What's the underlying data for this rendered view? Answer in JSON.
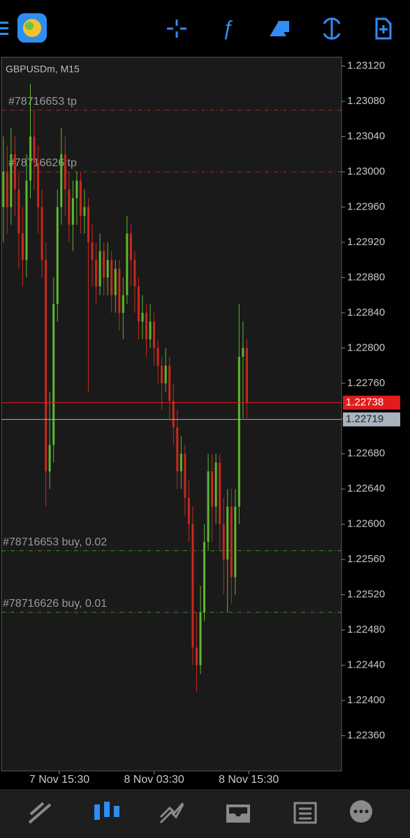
{
  "chart_data": {
    "type": "candlestick",
    "title": "GBPUSDm, M15",
    "up_color": "#5cb82e",
    "down_color": "#c8281e",
    "open": [
      1.2296,
      1.23,
      1.2296,
      1.2302,
      1.2298,
      1.2293,
      1.229,
      1.2299,
      1.2304,
      1.2301,
      1.2296,
      1.229,
      1.2266,
      1.2269,
      1.2285,
      1.2296,
      1.2302,
      1.2298,
      1.2294,
      1.2297,
      1.2299,
      1.2295,
      1.2296,
      1.2292,
      1.229,
      1.2287,
      1.2291,
      1.2288,
      1.229,
      1.2286,
      1.2289,
      1.2284,
      1.2286,
      1.2293,
      1.229,
      1.2287,
      1.2283,
      1.2284,
      1.2281,
      1.2283,
      1.228,
      1.2278,
      1.2276,
      1.2278,
      1.2274,
      1.2271,
      1.2266,
      1.2268,
      1.2263,
      1.226,
      1.2246,
      1.2244,
      1.225,
      1.2258,
      1.2266,
      1.2262,
      1.2267,
      1.226,
      1.2256,
      1.2262,
      1.2254,
      1.2262,
      1.2279,
      1.228
    ],
    "high": [
      1.2304,
      1.2303,
      1.2305,
      1.2304,
      1.23,
      1.2296,
      1.2302,
      1.231,
      1.2307,
      1.2303,
      1.2298,
      1.2292,
      1.2275,
      1.2288,
      1.2298,
      1.2305,
      1.2304,
      1.23,
      1.2299,
      1.23,
      1.23,
      1.2298,
      1.2297,
      1.2294,
      1.2292,
      1.2293,
      1.2292,
      1.2292,
      1.2291,
      1.229,
      1.229,
      1.2288,
      1.2295,
      1.2294,
      1.2291,
      1.2288,
      1.2286,
      1.2285,
      1.2285,
      1.2284,
      1.2281,
      1.2279,
      1.228,
      1.2279,
      1.2276,
      1.2273,
      1.227,
      1.2269,
      1.2265,
      1.2262,
      1.225,
      1.2253,
      1.226,
      1.2268,
      1.2268,
      1.2268,
      1.2268,
      1.2263,
      1.2264,
      1.2264,
      1.2264,
      1.2285,
      1.2283,
      1.2281
    ],
    "low": [
      1.2292,
      1.2293,
      1.2294,
      1.2295,
      1.2289,
      1.2287,
      1.2288,
      1.2297,
      1.2298,
      1.2293,
      1.2288,
      1.2262,
      1.2264,
      1.2267,
      1.2283,
      1.2294,
      1.2295,
      1.2292,
      1.2291,
      1.2294,
      1.2293,
      1.2293,
      1.2275,
      1.2287,
      1.2285,
      1.2286,
      1.2286,
      1.2286,
      1.2284,
      1.2284,
      1.2282,
      1.2281,
      1.2285,
      1.2287,
      1.2284,
      1.2281,
      1.2281,
      1.2279,
      1.228,
      1.2278,
      1.2276,
      1.2273,
      1.2275,
      1.2272,
      1.2269,
      1.2264,
      1.2264,
      1.2261,
      1.2258,
      1.2244,
      1.2241,
      1.2243,
      1.2249,
      1.2257,
      1.2258,
      1.226,
      1.2257,
      1.2252,
      1.225,
      1.2251,
      1.2252,
      1.226,
      1.2272,
      1.2272
    ],
    "close": [
      1.23,
      1.2296,
      1.2302,
      1.2298,
      1.2293,
      1.229,
      1.2299,
      1.2304,
      1.2301,
      1.2296,
      1.229,
      1.2266,
      1.2269,
      1.2285,
      1.2296,
      1.2302,
      1.2298,
      1.2294,
      1.2297,
      1.2299,
      1.2295,
      1.2296,
      1.2292,
      1.229,
      1.2287,
      1.2291,
      1.2288,
      1.229,
      1.2286,
      1.2289,
      1.2284,
      1.2286,
      1.2293,
      1.229,
      1.2287,
      1.2283,
      1.2284,
      1.2281,
      1.2283,
      1.228,
      1.2278,
      1.2276,
      1.2278,
      1.2274,
      1.2271,
      1.2266,
      1.2268,
      1.2263,
      1.226,
      1.2246,
      1.2244,
      1.225,
      1.2258,
      1.2266,
      1.2262,
      1.2267,
      1.226,
      1.2256,
      1.2262,
      1.2254,
      1.2262,
      1.2279,
      1.228,
      1.22738
    ],
    "xlim": [
      0,
      88
    ],
    "xticks": [
      {
        "value": 15,
        "label": "7 Nov 15:30"
      },
      {
        "value": 39.5,
        "label": "8 Nov 03:30"
      },
      {
        "value": 64,
        "label": "8 Nov 15:30"
      }
    ],
    "ylim": [
      1.2232,
      1.2313
    ],
    "yticks": [
      {
        "value": 1.2312,
        "label": "1.23120"
      },
      {
        "value": 1.2308,
        "label": "1.23080"
      },
      {
        "value": 1.2304,
        "label": "1.23040"
      },
      {
        "value": 1.23,
        "label": "1.23000"
      },
      {
        "value": 1.2296,
        "label": "1.22960"
      },
      {
        "value": 1.2292,
        "label": "1.22920"
      },
      {
        "value": 1.2288,
        "label": "1.22880"
      },
      {
        "value": 1.2284,
        "label": "1.22840"
      },
      {
        "value": 1.228,
        "label": "1.22800"
      },
      {
        "value": 1.2276,
        "label": "1.22760"
      },
      {
        "value": 1.2272,
        "label": "1.22720"
      },
      {
        "value": 1.2268,
        "label": "1.22680"
      },
      {
        "value": 1.2264,
        "label": "1.22640"
      },
      {
        "value": 1.226,
        "label": "1.22600"
      },
      {
        "value": 1.2256,
        "label": "1.22560"
      },
      {
        "value": 1.2252,
        "label": "1.22520"
      },
      {
        "value": 1.2248,
        "label": "1.22480"
      },
      {
        "value": 1.2244,
        "label": "1.22440"
      },
      {
        "value": 1.224,
        "label": "1.22400"
      },
      {
        "value": 1.2236,
        "label": "1.22360"
      }
    ],
    "levels": [
      {
        "label": "#78716653 tp",
        "value": 1.2307,
        "color": "#b02a22"
      },
      {
        "label": "#78716626 tp",
        "value": 1.23,
        "color": "#b02a22"
      },
      {
        "label": "#78716653 buy, 0.02",
        "value": 1.2257,
        "color": "#3f8a2a"
      },
      {
        "label": "#78716626 buy, 0.01",
        "value": 1.225,
        "color": "#3f8a2a"
      }
    ],
    "bid": {
      "value": 1.22738,
      "color": "#e31b1b"
    },
    "ask": {
      "value": 1.22719,
      "color": "#a9b4bf"
    }
  }
}
